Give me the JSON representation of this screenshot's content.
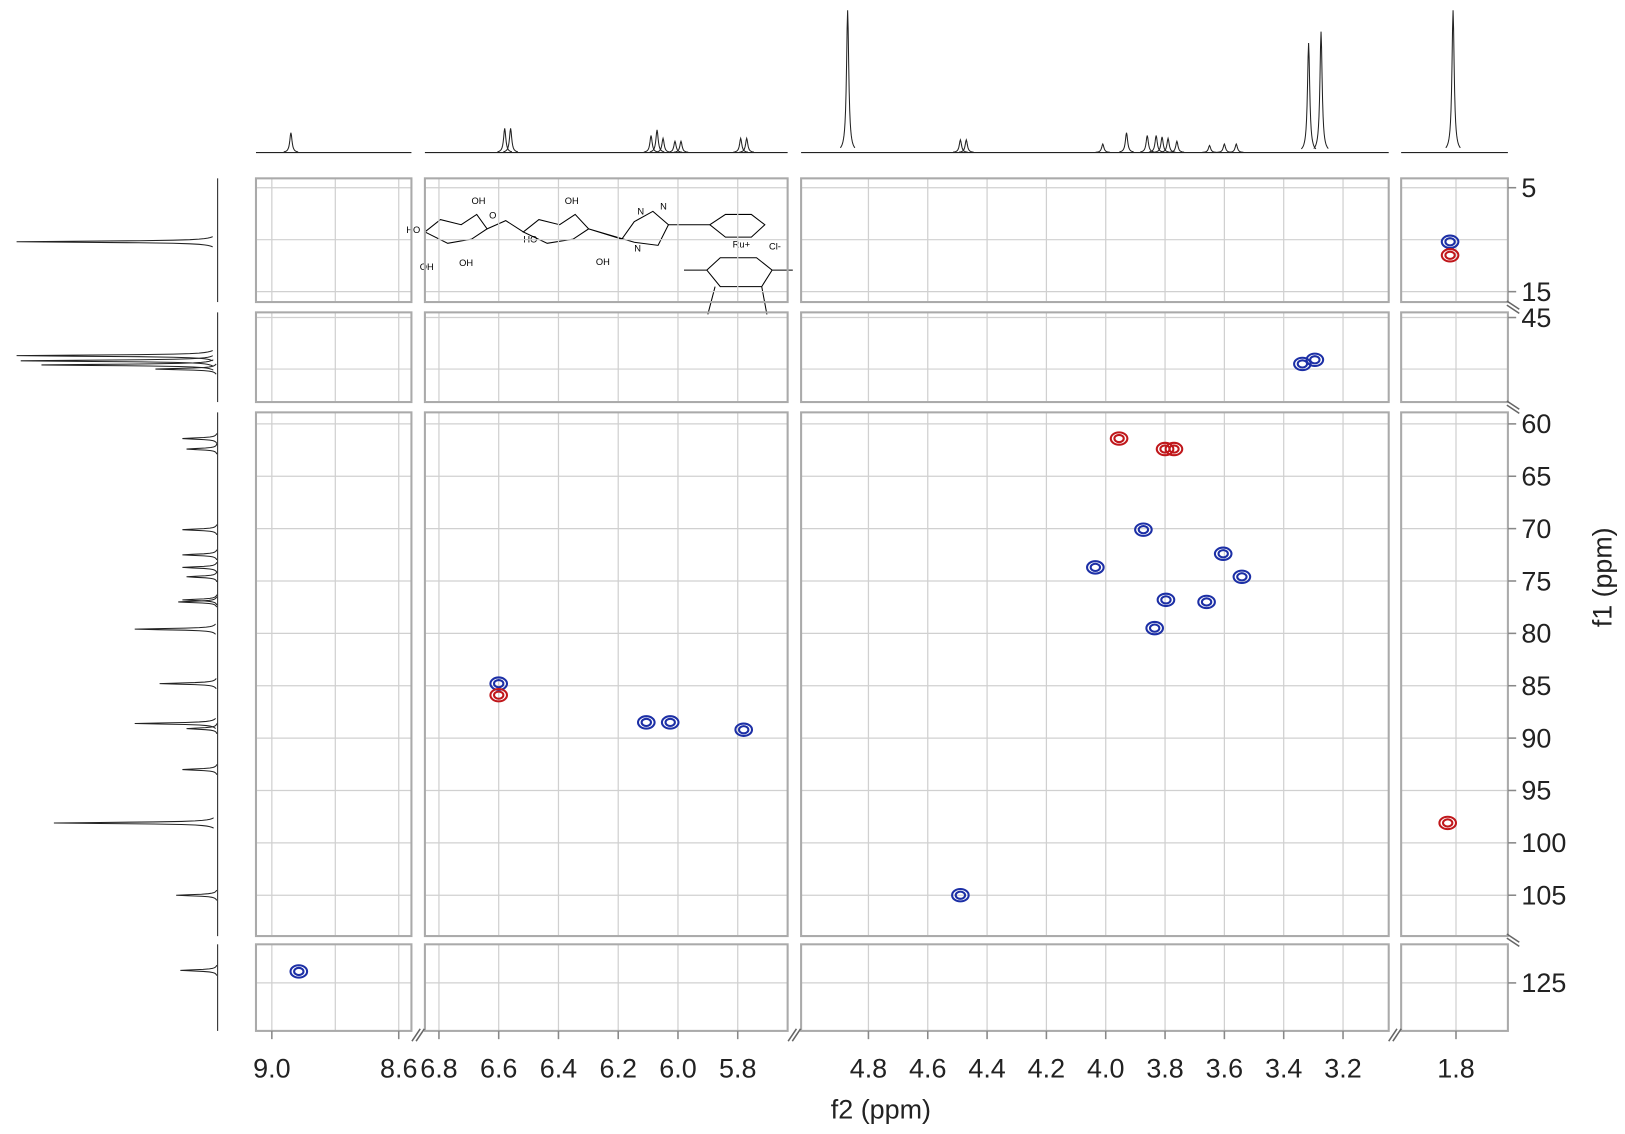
{
  "chart_data": {
    "type": "scatter",
    "x_axis_label": "f2 (ppm)",
    "y_axis_label": "f1 (ppm)",
    "x_panels": [
      {
        "xlim": [
          9.05,
          8.56
        ],
        "xticks": [
          {
            "value": 9,
            "label": "9.0"
          },
          8.6
        ],
        "xgrid": [
          8.8
        ]
      },
      {
        "xlim": [
          6.847,
          5.633
        ],
        "xticks": [
          6.8,
          6.6,
          6.4,
          6.2,
          {
            "value": 6,
            "label": "6.0"
          },
          5.8
        ]
      },
      {
        "xlim": [
          5.027,
          3.046
        ],
        "xticks": [
          4.8,
          4.6,
          4.4,
          4.2,
          {
            "value": 4,
            "label": "4.0"
          },
          3.8,
          3.6,
          3.4,
          3.2
        ]
      },
      {
        "xlim": [
          1.985,
          1.625
        ],
        "xticks": [
          1.8
        ]
      }
    ],
    "y_panels": [
      {
        "ylim": [
          4.1,
          16
        ],
        "yticks": [
          5,
          15
        ],
        "ygrid": [
          10
        ]
      },
      {
        "ylim": [
          44.5,
          53.2
        ],
        "yticks": [
          45
        ],
        "ygrid": [
          50
        ]
      },
      {
        "ylim": [
          58.9,
          108.9
        ],
        "yticks": [
          60,
          65,
          70,
          75,
          80,
          85,
          90,
          95,
          100,
          105
        ]
      },
      {
        "ylim": [
          121.3,
          129.6
        ],
        "yticks": [
          125
        ]
      }
    ],
    "series": [
      {
        "color": "#1c2fa6",
        "x": [
          1.82,
          3.337,
          3.295,
          3.873,
          4.035,
          3.604,
          3.541,
          3.797,
          3.66,
          3.835,
          4.49,
          6.6,
          6.106,
          6.026,
          5.78,
          8.915
        ],
        "values": [
          10.2,
          49.5,
          49.1,
          70.1,
          73.7,
          72.4,
          74.6,
          76.8,
          77.0,
          79.5,
          105.0,
          84.8,
          88.5,
          88.5,
          89.2,
          123.9
        ]
      },
      {
        "color": "#c0171b",
        "x": [
          1.82,
          3.955,
          3.8,
          3.77,
          6.6,
          1.828
        ],
        "values": [
          11.5,
          61.4,
          62.4,
          62.4,
          85.9,
          98.1
        ]
      }
    ],
    "f2_projection": {
      "x": [
        8.94,
        6.58,
        6.56,
        6.09,
        6.07,
        6.05,
        6.01,
        5.99,
        5.79,
        5.77,
        4.87,
        4.49,
        4.47,
        4.01,
        3.93,
        3.86,
        3.83,
        3.81,
        3.79,
        3.76,
        3.65,
        3.6,
        3.56,
        3.316,
        3.274,
        1.81
      ],
      "values": [
        14,
        17,
        17,
        12,
        16,
        10,
        8,
        8,
        10,
        10,
        100,
        9,
        9,
        6,
        14,
        12,
        12,
        11,
        10,
        8,
        5,
        6,
        6,
        77,
        85,
        100
      ]
    },
    "f1_projection": {
      "y": [
        10.2,
        48.7,
        49.2,
        49.6,
        50,
        61.4,
        62.4,
        70.1,
        72.5,
        73.7,
        74.6,
        76.8,
        77.0,
        79.6,
        84.8,
        88.6,
        89.1,
        93,
        98.1,
        105.0,
        123.8
      ],
      "values": [
        97,
        97,
        95,
        85,
        30,
        17,
        15,
        17,
        17,
        17,
        15,
        17,
        19,
        40,
        28,
        40,
        15,
        17,
        79,
        20,
        18
      ]
    },
    "structure_labels": [
      "OH",
      "HO",
      "OH",
      "OH",
      "O",
      "HO",
      "OH",
      "OH",
      "N",
      "N",
      "N",
      "Ru+",
      "Cl-"
    ]
  }
}
